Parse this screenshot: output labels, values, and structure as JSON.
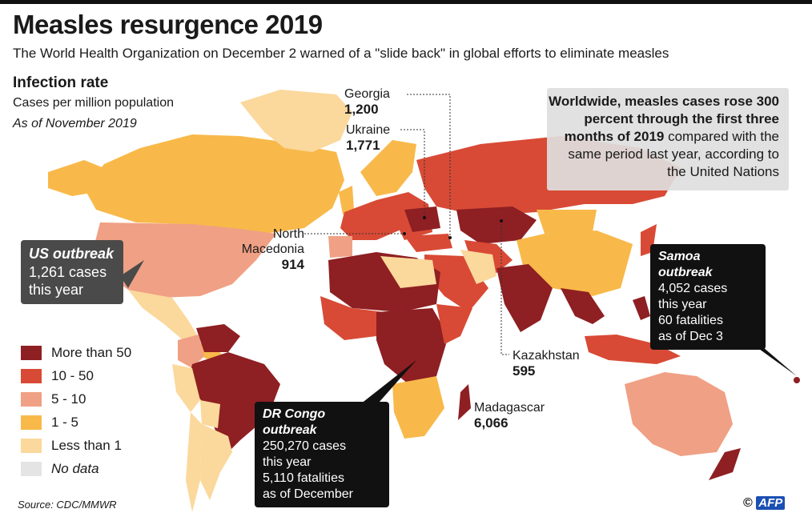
{
  "title": "Measles resurgence 2019",
  "subtitle": "The World Health Organization on December 2 warned of a \"slide back\" in global efforts to eliminate measles",
  "section": {
    "title": "Infection rate",
    "subtitle": "Cases per million population",
    "date": "As of November 2019"
  },
  "worldwide": {
    "bold": "Worldwide, measles cases rose 300 percent through the first three months of 2019",
    "rest": "compared with the same period last year, according to the United Nations"
  },
  "labels": {
    "georgia": {
      "name": "Georgia",
      "value": "1,200"
    },
    "ukraine": {
      "name": "Ukraine",
      "value": "1,771"
    },
    "north_macedonia": {
      "name1": "North",
      "name2": "Macedonia",
      "value": "914"
    },
    "kazakhstan": {
      "name": "Kazakhstan",
      "value": "595"
    },
    "madagascar": {
      "name": "Madagascar",
      "value": "6,066"
    }
  },
  "callouts": {
    "us": {
      "title": "US outbreak",
      "line1": "1,261 cases",
      "line2": "this year"
    },
    "samoa": {
      "title": "Samoa outbreak",
      "line1": "4,052 cases",
      "line2": "this year",
      "line3": "60 fatalities",
      "line4": "as of Dec 3"
    },
    "drc": {
      "title": "DR Congo outbreak",
      "line1": "250,270 cases",
      "line2": "this year",
      "line3": "5,110 fatalities",
      "line4": "as of December"
    }
  },
  "legend": [
    {
      "label": "More than 50",
      "color": "#8e1f22"
    },
    {
      "label": "10 - 50",
      "color": "#d84a35"
    },
    {
      "label": "5 - 10",
      "color": "#f0a084"
    },
    {
      "label": "1 - 5",
      "color": "#f8b94a"
    },
    {
      "label": "Less than 1",
      "color": "#fbd89c"
    },
    {
      "label": "No data",
      "color": "#e4e4e4"
    }
  ],
  "source": "Source: CDC/MMWR",
  "credit": {
    "symbol": "©",
    "agency": "AFP"
  }
}
